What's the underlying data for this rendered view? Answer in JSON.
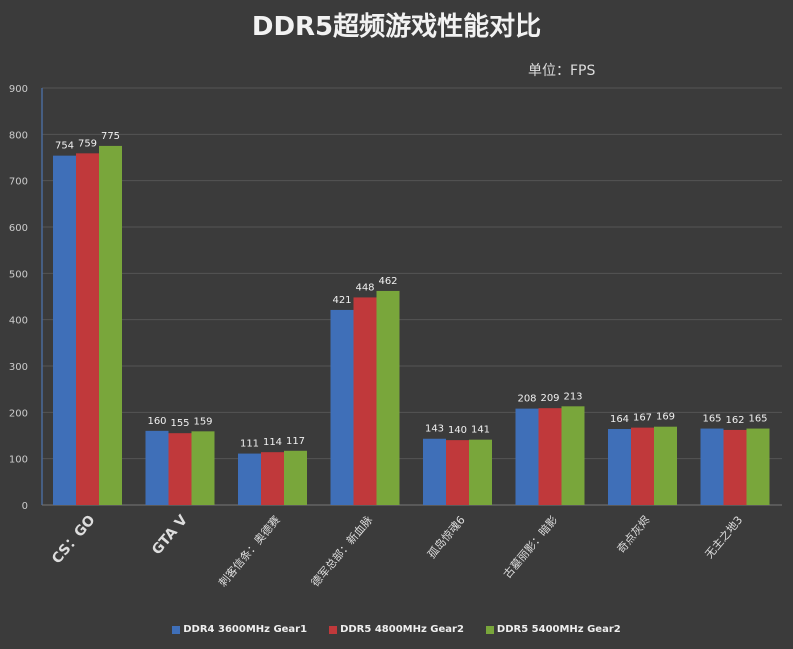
{
  "chart_data": {
    "type": "bar",
    "title": "DDR5超频游戏性能对比",
    "unit_label": "单位：FPS",
    "categories": [
      "CS：GO",
      "GTA V",
      "刺客信条：奥德赛",
      "德军总部：新血脉",
      "孤岛惊魂6",
      "古墓丽影：暗影",
      "奇点灰烬",
      "无主之地3"
    ],
    "series": [
      {
        "name": "DDR4 3600MHz Gear1",
        "color": "#3f6fb8",
        "values": [
          754,
          160,
          111,
          421,
          143,
          208,
          164,
          165
        ]
      },
      {
        "name": "DDR5 4800MHz Gear2",
        "color": "#c0393b",
        "values": [
          759,
          155,
          114,
          448,
          140,
          209,
          167,
          162
        ]
      },
      {
        "name": "DDR5 5400MHz Gear2",
        "color": "#79a63b",
        "values": [
          775,
          159,
          117,
          462,
          141,
          213,
          169,
          165
        ]
      }
    ],
    "ylim": [
      0,
      900
    ],
    "yticks": [
      0,
      100,
      200,
      300,
      400,
      500,
      600,
      700,
      800,
      900
    ],
    "grid": true,
    "legend_position": "bottom"
  }
}
